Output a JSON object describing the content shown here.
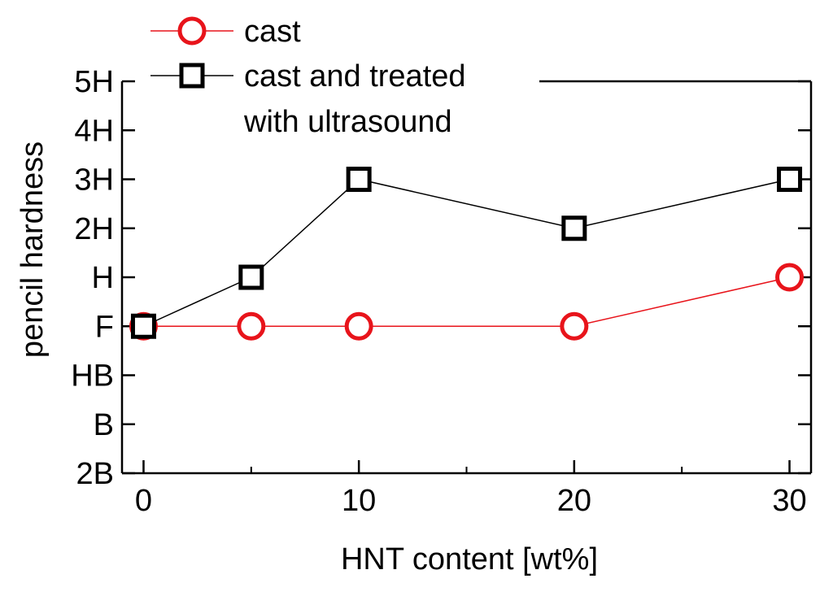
{
  "chart_data": {
    "type": "line",
    "xlabel": "HNT content [wt%]",
    "ylabel": "pencil hardness",
    "x_ticks": [
      "0",
      "10",
      "20",
      "30"
    ],
    "y_ticks": [
      "2B",
      "B",
      "HB",
      "F",
      "H",
      "2H",
      "3H",
      "4H",
      "5H"
    ],
    "xlim": [
      -1,
      31
    ],
    "ylim": [
      "2B",
      "5H"
    ],
    "grid": false,
    "legend_position": "top-left",
    "series": [
      {
        "name": "cast",
        "color": "#e8141b",
        "marker": "circle",
        "x": [
          0,
          5,
          10,
          20,
          30
        ],
        "y": [
          "F",
          "F",
          "F",
          "F",
          "H"
        ]
      },
      {
        "name": "cast and treated with ultrasound",
        "name_lines": [
          "cast and treated",
          "with ultrasound"
        ],
        "color": "#000000",
        "marker": "square",
        "x": [
          0,
          5,
          10,
          20,
          30
        ],
        "y": [
          "F",
          "H",
          "3H",
          "2H",
          "3H"
        ]
      }
    ]
  }
}
